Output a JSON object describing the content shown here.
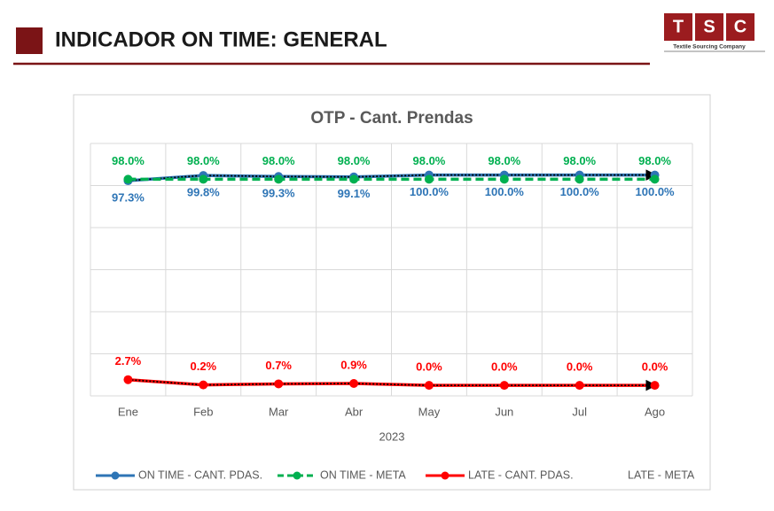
{
  "header": {
    "title": "INDICADOR ON TIME: GENERAL",
    "logo": {
      "letters": [
        "T",
        "S",
        "C"
      ],
      "tagline": "Textile Sourcing Company"
    }
  },
  "chart_data": {
    "type": "line",
    "title": "OTP - Cant. Prendas",
    "x_label": "2023",
    "categories": [
      "Ene",
      "Feb",
      "Mar",
      "Abr",
      "May",
      "Jun",
      "Jul",
      "Ago"
    ],
    "ylim": [
      -5,
      115
    ],
    "yticks": [
      -5,
      15,
      35,
      55,
      75,
      95,
      115
    ],
    "grid": true,
    "legend": "bottom",
    "series": [
      {
        "name": "ON TIME - CANT. PDAS.",
        "color": "#2e75b6",
        "values": [
          97.3,
          99.8,
          99.3,
          99.1,
          100,
          100,
          100,
          100
        ],
        "value_labels": [
          "97.3%",
          "99.8%",
          "99.3%",
          "99.1%",
          "100.0%",
          "100.0%",
          "100.0%",
          "100.0%"
        ],
        "label_position": "below",
        "trend": true
      },
      {
        "name": "ON TIME - META",
        "color": "#00b050",
        "dashed": true,
        "values": [
          98,
          98,
          98,
          98,
          98,
          98,
          98,
          98
        ],
        "value_labels": [
          "98.0%",
          "98.0%",
          "98.0%",
          "98.0%",
          "98.0%",
          "98.0%",
          "98.0%",
          "98.0%"
        ],
        "label_position": "above"
      },
      {
        "name": "LATE - CANT. PDAS.",
        "color": "#ff0000",
        "values": [
          2.7,
          0.2,
          0.7,
          0.9,
          0,
          0,
          0,
          0
        ],
        "value_labels": [
          "2.7%",
          "0.2%",
          "0.7%",
          "0.9%",
          "0.0%",
          "0.0%",
          "0.0%",
          "0.0%"
        ],
        "label_position": "above",
        "trend": true
      },
      {
        "name": "LATE - META",
        "values": [
          null,
          null,
          null,
          null,
          null,
          null,
          null,
          null
        ]
      }
    ]
  }
}
